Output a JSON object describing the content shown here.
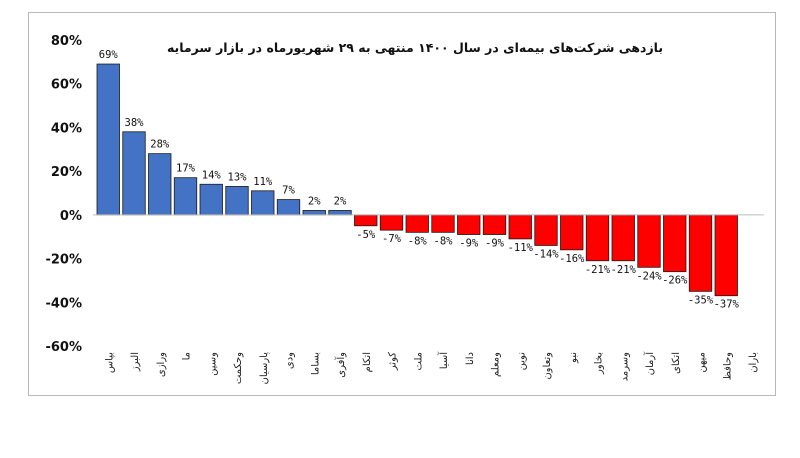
{
  "chart_data": {
    "type": "bar",
    "title": "بازدهی شرکت‌های بیمه‌ای در سال ۱۴۰۰ منتهی به ۲۹ شهریورماه در بازار سرمایه",
    "categories": [
      "بپاس",
      "البرز",
      "ورازی",
      "ما",
      "وسین",
      "وحکمت",
      "پارسیان",
      "ودی",
      "بساما",
      "وآفری",
      "اتکام",
      "کوثر",
      "ملت",
      "آسیا",
      "دانا",
      "ومعلم",
      "نوین",
      "وتعاون",
      "نبو",
      "بخاور",
      "وسرمد",
      "آرمان",
      "اتکای",
      "میهن",
      "وحافظ",
      "باران"
    ],
    "values": [
      69,
      38,
      28,
      17,
      14,
      13,
      11,
      7,
      2,
      2,
      -5,
      -7,
      -8,
      -8,
      -9,
      -9,
      -11,
      -14,
      -16,
      -21,
      -21,
      -24,
      -26,
      -35,
      -37,
      null
    ],
    "data_labels": [
      "69%",
      "38%",
      "28%",
      "17%",
      "14%",
      "13%",
      "11%",
      "7%",
      "2%",
      "2%",
      "-5%",
      "-7%",
      "-8%",
      "-8%",
      "-9%",
      "-9%",
      "-11%",
      "-14%",
      "-16%",
      "-21%",
      "-21%",
      "-24%",
      "-26%",
      "-35%",
      "-37%",
      ""
    ],
    "yticks": [
      80,
      60,
      40,
      20,
      0,
      -20,
      -40,
      -60
    ],
    "ytick_labels": [
      "80%",
      "60%",
      "40%",
      "20%",
      "0%",
      "-20%",
      "-40%",
      "-60%"
    ],
    "ylim": [
      -60,
      80
    ],
    "xlabel": "",
    "ylabel": "",
    "grid": false,
    "legend": "none",
    "colors": {
      "positive": "#4472c4",
      "negative": "#ff0000",
      "bar_edge": "#1a1a1a"
    }
  }
}
